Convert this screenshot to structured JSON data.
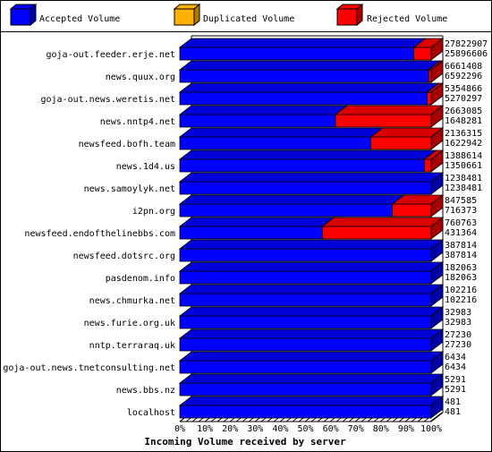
{
  "chart_data": {
    "type": "bar",
    "orientation": "horizontal",
    "stacked": true,
    "three_d": true,
    "title": "Incoming Volume received by server",
    "legend_placement": "top",
    "series": [
      {
        "name": "Accepted Volume",
        "color": "#0000ff"
      },
      {
        "name": "Duplicated Volume",
        "color": "#ffb000"
      },
      {
        "name": "Rejected Volume",
        "color": "#ff0000"
      }
    ],
    "categories": [
      "goja-out.feeder.erje.net",
      "news.quux.org",
      "goja-out.news.weretis.net",
      "news.nntp4.net",
      "newsfeed.bofh.team",
      "news.1d4.us",
      "news.samoylyk.net",
      "i2pn.org",
      "newsfeed.endofthelinebbs.com",
      "newsfeed.dotsrc.org",
      "pasdenom.info",
      "news.chmurka.net",
      "news.furie.org.uk",
      "nntp.terraraq.uk",
      "goja-out.news.tnetconsulting.net",
      "news.bbs.nz",
      "localhost"
    ],
    "total_labels": [
      "27822907",
      "6661408",
      "5354866",
      "2663085",
      "2136315",
      "1388614",
      "1238481",
      "847585",
      "760763",
      "387814",
      "182063",
      "102216",
      "32983",
      "27230",
      "6434",
      "5291",
      "481"
    ],
    "accepted_labels": [
      "25896606",
      "6592296",
      "5270297",
      "1648281",
      "1622942",
      "1350661",
      "1238481",
      "716373",
      "431364",
      "387814",
      "182063",
      "102216",
      "32983",
      "27230",
      "6434",
      "5291",
      "481"
    ],
    "accepted": [
      25896606,
      6592296,
      5270297,
      1648281,
      1622942,
      1350661,
      1238481,
      716373,
      431364,
      387814,
      182063,
      102216,
      32983,
      27230,
      6434,
      5291,
      481
    ],
    "duplicated": [
      0,
      0,
      0,
      0,
      0,
      0,
      0,
      0,
      0,
      0,
      0,
      0,
      0,
      0,
      0,
      0,
      0
    ],
    "rejected": [
      1926301,
      69112,
      84569,
      1014804,
      513373,
      37953,
      0,
      131212,
      329399,
      0,
      0,
      0,
      0,
      0,
      0,
      0,
      0
    ],
    "x_ticks": [
      "0%",
      "10%",
      "20%",
      "30%",
      "40%",
      "50%",
      "60%",
      "70%",
      "80%",
      "90%",
      "100%"
    ],
    "xlim": [
      0,
      100
    ],
    "grid": false
  }
}
